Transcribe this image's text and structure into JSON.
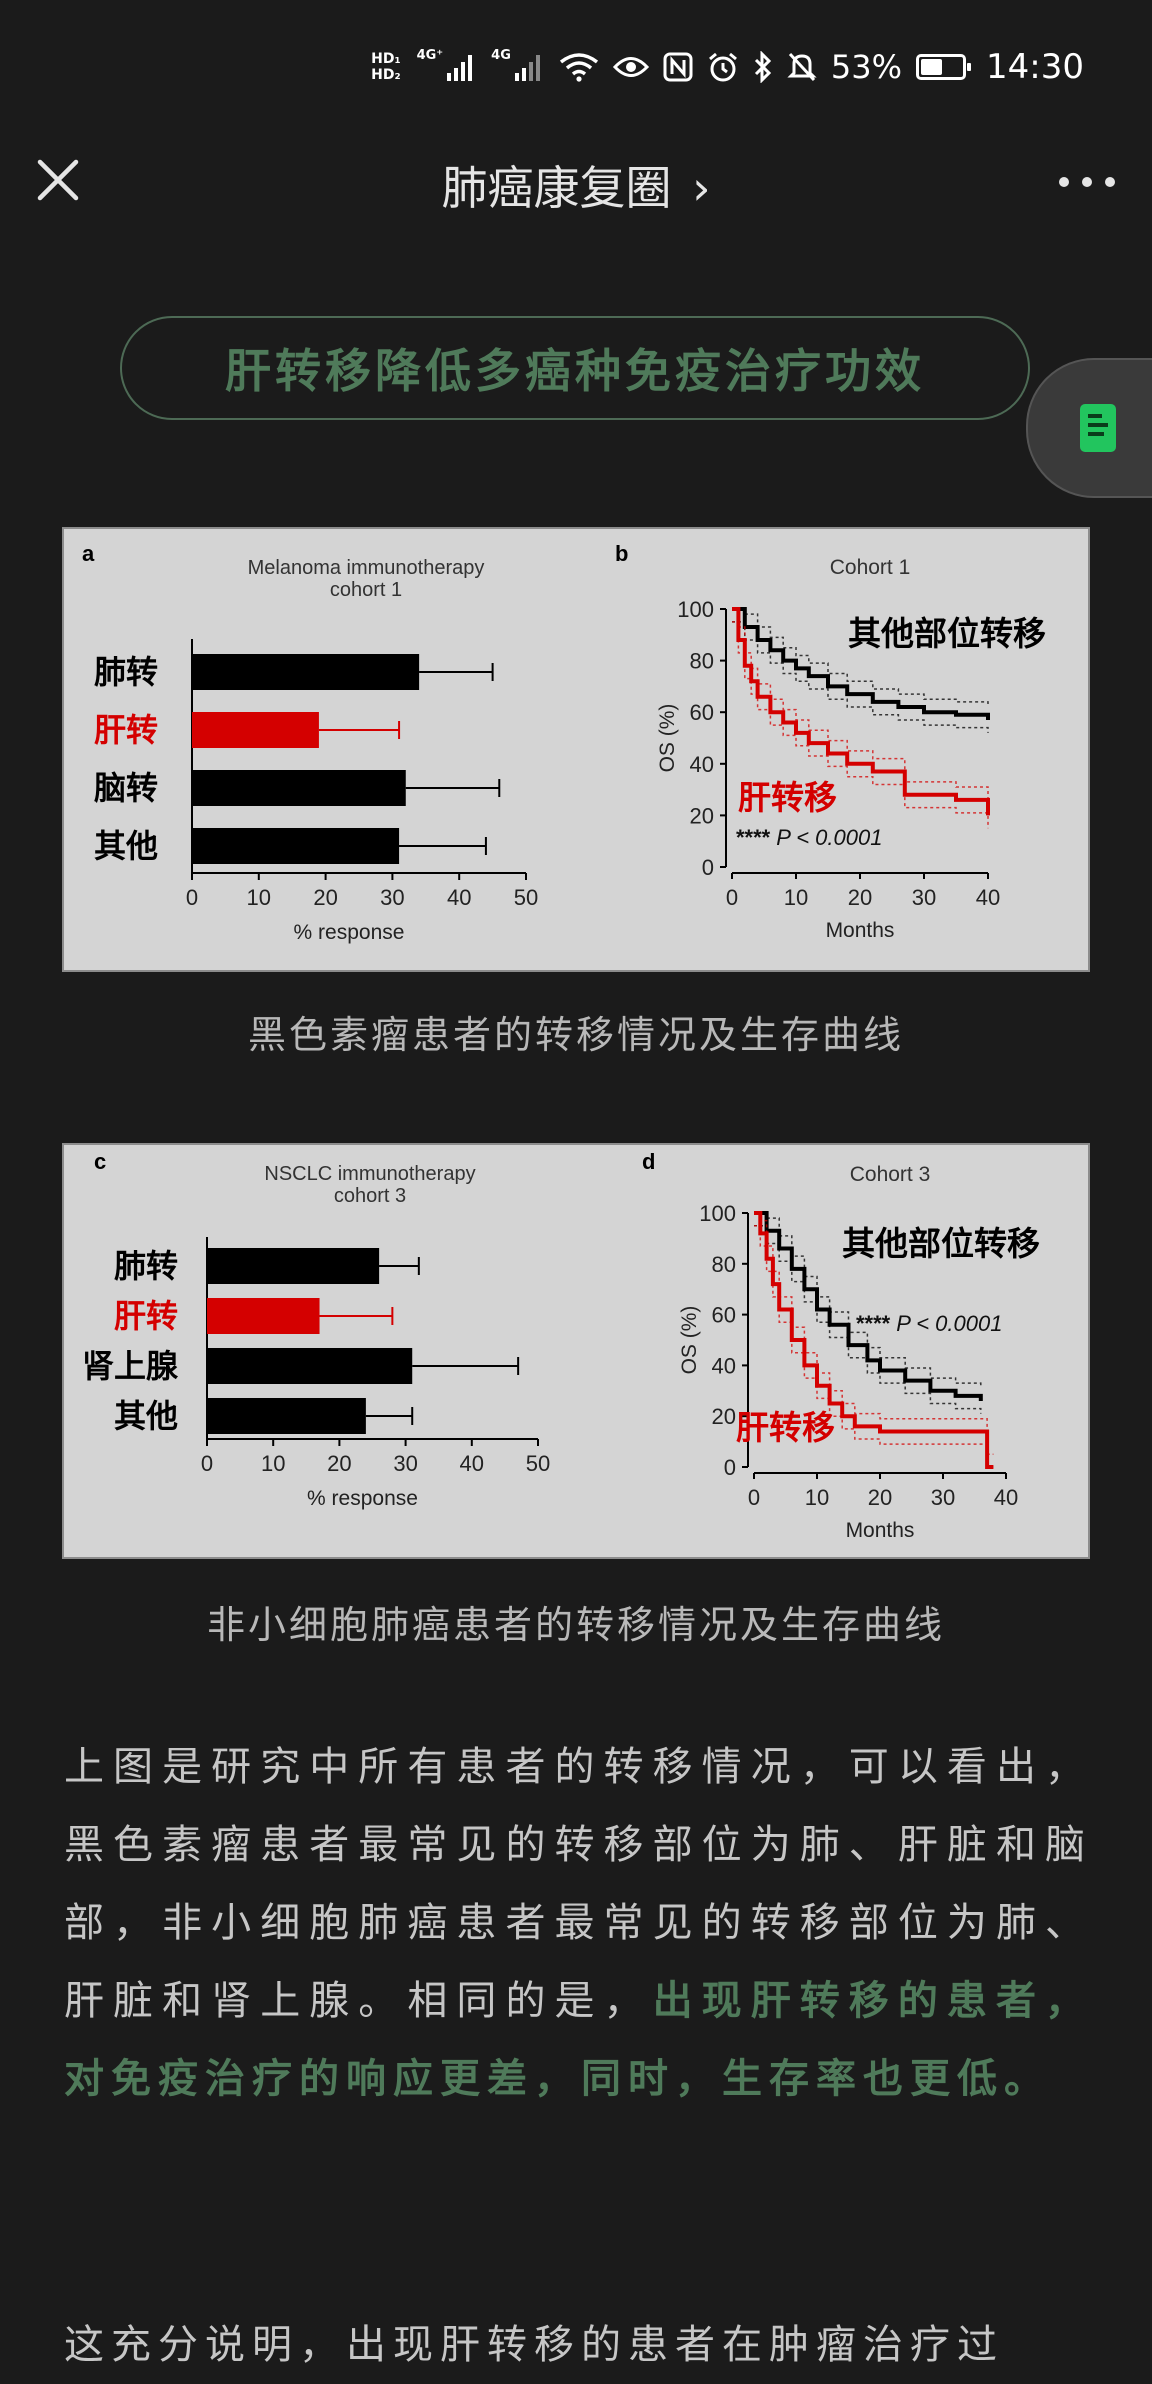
{
  "status_bar": {
    "hd_top": "HD₁",
    "hd_bottom": "HD₂",
    "net1": "4G⁺",
    "net2": "4G",
    "battery_percent": "53%",
    "battery_level": 0.53,
    "time": "14:30",
    "icons": [
      "signal-icon",
      "signal-icon",
      "wifi-icon",
      "eye-icon",
      "nfc-icon",
      "alarm-icon",
      "bluetooth-icon",
      "mute-icon",
      "battery-icon"
    ]
  },
  "nav": {
    "title": "肺癌康复圈",
    "chevron": "›"
  },
  "section_title": "肝转移降低多癌种免疫治疗功效",
  "figure1": {
    "panel_a_letter": "a",
    "panel_b_letter": "b",
    "caption": "黑色素瘤患者的转移情况及生存曲线"
  },
  "figure2": {
    "panel_c_letter": "c",
    "panel_d_letter": "d",
    "caption": "非小细胞肺癌患者的转移情况及生存曲线"
  },
  "chart_data": [
    {
      "type": "bar",
      "panel": "a",
      "title": "Melanoma immunotherapy cohort 1",
      "title_lines": [
        "Melanoma immunotherapy",
        "cohort 1"
      ],
      "categories": [
        "肺转",
        "肝转",
        "脑转",
        "其他"
      ],
      "values": [
        34,
        19,
        32,
        31
      ],
      "error_upper": [
        45,
        31,
        46,
        44
      ],
      "colors": [
        "#000000",
        "#d40000",
        "#000000",
        "#000000"
      ],
      "label_colors": [
        "#000000",
        "#d40000",
        "#000000",
        "#000000"
      ],
      "xlabel": "% response",
      "xlim": [
        0,
        50
      ],
      "xticks": [
        0,
        10,
        20,
        30,
        40,
        50
      ]
    },
    {
      "type": "line",
      "panel": "b",
      "title": "Cohort 1",
      "xlabel": "Months",
      "ylabel": "OS (%)",
      "xlim": [
        0,
        40
      ],
      "ylim": [
        0,
        100
      ],
      "xticks": [
        0,
        10,
        20,
        30,
        40
      ],
      "yticks": [
        0,
        20,
        40,
        60,
        80,
        100
      ],
      "annotation_stars": "****",
      "annotation_p": "P < 0.0001",
      "series": [
        {
          "name": "其他部位转移",
          "color": "#000000",
          "x": [
            0,
            2,
            4,
            6,
            8,
            10,
            12,
            15,
            18,
            22,
            26,
            30,
            35,
            40
          ],
          "y": [
            100,
            93,
            88,
            84,
            80,
            77,
            74,
            70,
            67,
            64,
            62,
            60,
            59,
            57
          ]
        },
        {
          "name": "肝转移",
          "color": "#d40000",
          "x": [
            0,
            1,
            2,
            3,
            4,
            6,
            8,
            10,
            12,
            15,
            18,
            22,
            26,
            27,
            30,
            35,
            40
          ],
          "y": [
            100,
            88,
            78,
            72,
            66,
            60,
            56,
            52,
            48,
            44,
            40,
            37,
            37,
            28,
            28,
            26,
            20
          ]
        }
      ]
    },
    {
      "type": "bar",
      "panel": "c",
      "title": "NSCLC immunotherapy cohort 3",
      "title_lines": [
        "NSCLC immunotherapy",
        "cohort 3"
      ],
      "categories": [
        "肺转",
        "肝转",
        "肾上腺",
        "其他"
      ],
      "values": [
        26,
        17,
        31,
        24
      ],
      "error_upper": [
        32,
        28,
        47,
        31
      ],
      "colors": [
        "#000000",
        "#d40000",
        "#000000",
        "#000000"
      ],
      "label_colors": [
        "#000000",
        "#d40000",
        "#000000",
        "#000000"
      ],
      "xlabel": "% response",
      "xlim": [
        0,
        50
      ],
      "xticks": [
        0,
        10,
        20,
        30,
        40,
        50
      ]
    },
    {
      "type": "line",
      "panel": "d",
      "title": "Cohort 3",
      "xlabel": "Months",
      "ylabel": "OS (%)",
      "xlim": [
        0,
        40
      ],
      "ylim": [
        0,
        100
      ],
      "xticks": [
        0,
        10,
        20,
        30,
        40
      ],
      "yticks": [
        0,
        20,
        40,
        60,
        80,
        100
      ],
      "annotation_stars": "****",
      "annotation_p": "P < 0.0001",
      "series": [
        {
          "name": "其他部位转移",
          "color": "#000000",
          "x": [
            0,
            2,
            4,
            6,
            8,
            10,
            12,
            15,
            18,
            20,
            24,
            28,
            32,
            36
          ],
          "y": [
            100,
            93,
            86,
            78,
            70,
            62,
            56,
            48,
            42,
            38,
            34,
            30,
            28,
            26
          ]
        },
        {
          "name": "肝转移",
          "color": "#d40000",
          "x": [
            0,
            1,
            2,
            3,
            4,
            6,
            8,
            10,
            12,
            14,
            16,
            20,
            25,
            30,
            35,
            37,
            38
          ],
          "y": [
            100,
            92,
            82,
            72,
            62,
            50,
            40,
            32,
            25,
            20,
            16,
            14,
            14,
            14,
            14,
            0,
            0
          ]
        }
      ]
    }
  ],
  "paragraph1": {
    "plain": "上图是研究中所有患者的转移情况，可以看出，黑色素瘤患者最常见的转移部位为肺、肝脏和脑部，非小细胞肺癌患者最常见的转移部位为肺、肝脏和肾上腺。相同的是，",
    "highlight": "出现肝转移的患者，对免疫治疗的响应更差，同时，生存率也更低。"
  },
  "paragraph2": {
    "plain": "这充分说明，出现肝转移的患者在肿瘤治疗过"
  }
}
